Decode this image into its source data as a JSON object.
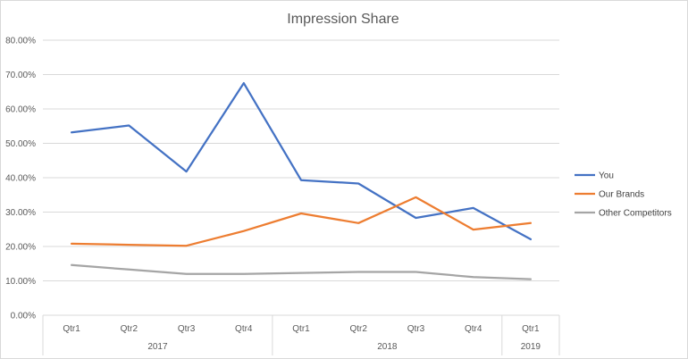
{
  "chart_data": {
    "type": "line",
    "title": "Impression Share",
    "xlabel": "",
    "ylabel": "",
    "ylim": [
      0,
      0.8
    ],
    "y_ticks": [
      0,
      0.1,
      0.2,
      0.3,
      0.4,
      0.5,
      0.6,
      0.7,
      0.8
    ],
    "y_tick_format": "percent_2dp",
    "grid": true,
    "legend_position": "right",
    "categories": [
      "Qtr1",
      "Qtr2",
      "Qtr3",
      "Qtr4",
      "Qtr1",
      "Qtr2",
      "Qtr3",
      "Qtr4",
      "Qtr1"
    ],
    "category_groups": [
      {
        "label": "2017",
        "count": 4
      },
      {
        "label": "2018",
        "count": 4
      },
      {
        "label": "2019",
        "count": 1
      }
    ],
    "series": [
      {
        "name": "You",
        "color": "#4472C4",
        "values": [
          0.532,
          0.552,
          0.418,
          0.675,
          0.393,
          0.383,
          0.283,
          0.312,
          0.221
        ]
      },
      {
        "name": "Our Brands",
        "color": "#ED7D31",
        "values": [
          0.208,
          0.205,
          0.202,
          0.245,
          0.296,
          0.268,
          0.343,
          0.249,
          0.268
        ]
      },
      {
        "name": "Other Competitors",
        "color": "#A5A5A5",
        "values": [
          0.146,
          0.133,
          0.12,
          0.12,
          0.123,
          0.126,
          0.126,
          0.111,
          0.105
        ]
      }
    ]
  }
}
